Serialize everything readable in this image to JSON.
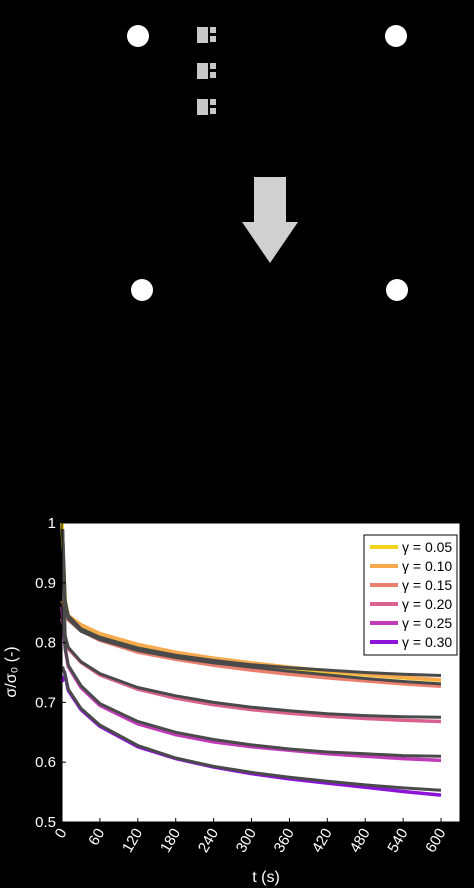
{
  "schematic": {
    "arrow_color": "#d0d0d0",
    "dot_color": "#ffffff",
    "marker_color": "#c8c8c8"
  },
  "chart_data": {
    "type": "line",
    "xlabel": "t (s)",
    "ylabel": "σ/σ₀ (-)",
    "xlim": [
      0,
      630
    ],
    "ylim": [
      0.5,
      1.0
    ],
    "xticks": [
      0,
      60,
      120,
      180,
      240,
      300,
      360,
      420,
      480,
      540,
      600
    ],
    "yticks": [
      0.5,
      0.6,
      0.7,
      0.8,
      0.9,
      1.0
    ],
    "ytick_labels": [
      "0.5",
      "0.6",
      "0.7",
      "0.8",
      "0.9",
      "1"
    ],
    "grid": false,
    "legend_position": "top-right",
    "fit_color": "#4a4a4a",
    "series": [
      {
        "name": "γ = 0.05",
        "color": "#f2d31b",
        "x": [
          0,
          5,
          10,
          30,
          60,
          120,
          180,
          240,
          300,
          360,
          420,
          480,
          540,
          600
        ],
        "y": [
          1.0,
          0.87,
          0.845,
          0.826,
          0.812,
          0.794,
          0.782,
          0.772,
          0.764,
          0.757,
          0.751,
          0.746,
          0.741,
          0.737
        ]
      },
      {
        "name": "γ = 0.10",
        "color": "#f6a94d",
        "x": [
          0,
          5,
          10,
          30,
          60,
          120,
          180,
          240,
          300,
          360,
          420,
          480,
          540,
          600
        ],
        "y": [
          0.87,
          0.855,
          0.845,
          0.83,
          0.815,
          0.797,
          0.784,
          0.774,
          0.766,
          0.759,
          0.753,
          0.747,
          0.742,
          0.738
        ]
      },
      {
        "name": "γ = 0.15",
        "color": "#ea7f6e",
        "x": [
          0,
          5,
          10,
          30,
          60,
          120,
          180,
          240,
          300,
          360,
          420,
          480,
          540,
          600
        ],
        "y": [
          0.86,
          0.845,
          0.838,
          0.82,
          0.804,
          0.784,
          0.772,
          0.762,
          0.754,
          0.747,
          0.741,
          0.736,
          0.731,
          0.727
        ]
      },
      {
        "name": "γ = 0.20",
        "color": "#d9608f",
        "x": [
          0,
          5,
          10,
          30,
          60,
          120,
          180,
          240,
          300,
          360,
          420,
          480,
          540,
          600
        ],
        "y": [
          0.84,
          0.81,
          0.79,
          0.767,
          0.746,
          0.722,
          0.707,
          0.696,
          0.688,
          0.682,
          0.677,
          0.673,
          0.67,
          0.668
        ]
      },
      {
        "name": "γ = 0.25",
        "color": "#c13bb8",
        "x": [
          0,
          5,
          10,
          30,
          60,
          120,
          180,
          240,
          300,
          360,
          420,
          480,
          540,
          600
        ],
        "y": [
          0.86,
          0.79,
          0.76,
          0.725,
          0.695,
          0.664,
          0.646,
          0.634,
          0.626,
          0.62,
          0.614,
          0.61,
          0.606,
          0.603
        ]
      },
      {
        "name": "γ = 0.30",
        "color": "#8b14d8",
        "x": [
          0,
          5,
          10,
          30,
          60,
          120,
          180,
          240,
          300,
          360,
          420,
          480,
          540,
          600
        ],
        "y": [
          0.735,
          0.745,
          0.72,
          0.688,
          0.66,
          0.626,
          0.606,
          0.592,
          0.581,
          0.572,
          0.565,
          0.558,
          0.551,
          0.545
        ]
      }
    ],
    "fits": [
      {
        "x": [
          1,
          5,
          10,
          30,
          60,
          120,
          180,
          240,
          300,
          360,
          420,
          480,
          540,
          600
        ],
        "y": [
          0.99,
          0.87,
          0.845,
          0.823,
          0.809,
          0.791,
          0.779,
          0.77,
          0.763,
          0.758,
          0.754,
          0.75,
          0.747,
          0.745
        ]
      },
      {
        "x": [
          1,
          5,
          10,
          30,
          60,
          120,
          180,
          240,
          300,
          360,
          420,
          480,
          540,
          600
        ],
        "y": [
          0.99,
          0.865,
          0.84,
          0.819,
          0.805,
          0.787,
          0.775,
          0.766,
          0.759,
          0.752,
          0.746,
          0.74,
          0.735,
          0.731
        ]
      },
      {
        "x": [
          1,
          5,
          10,
          30,
          60,
          120,
          180,
          240,
          300,
          360,
          420,
          480,
          540,
          600
        ],
        "y": [
          0.99,
          0.81,
          0.792,
          0.768,
          0.748,
          0.725,
          0.711,
          0.7,
          0.692,
          0.686,
          0.681,
          0.678,
          0.676,
          0.675
        ]
      },
      {
        "x": [
          1,
          5,
          10,
          30,
          60,
          120,
          180,
          240,
          300,
          360,
          420,
          480,
          540,
          600
        ],
        "y": [
          0.86,
          0.79,
          0.762,
          0.728,
          0.698,
          0.668,
          0.65,
          0.638,
          0.629,
          0.622,
          0.617,
          0.614,
          0.611,
          0.61
        ]
      },
      {
        "x": [
          1,
          5,
          10,
          30,
          60,
          120,
          180,
          240,
          300,
          360,
          420,
          480,
          540,
          600
        ],
        "y": [
          0.76,
          0.745,
          0.722,
          0.69,
          0.662,
          0.628,
          0.607,
          0.593,
          0.583,
          0.575,
          0.568,
          0.562,
          0.557,
          0.553
        ]
      }
    ]
  }
}
